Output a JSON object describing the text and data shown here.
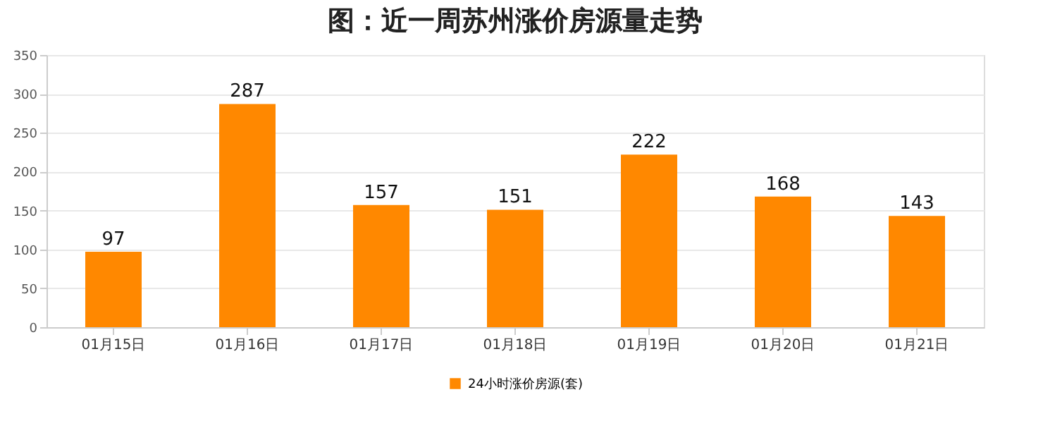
{
  "chart_data": {
    "type": "bar",
    "title": "图：近一周苏州涨价房源量走势",
    "categories": [
      "01月15日",
      "01月16日",
      "01月17日",
      "01月18日",
      "01月19日",
      "01月20日",
      "01月21日"
    ],
    "series": [
      {
        "name": "24小时涨价房源(套)",
        "color": "#ff8800",
        "values": [
          97,
          287,
          157,
          151,
          222,
          168,
          143
        ]
      }
    ],
    "ylim": [
      0,
      350
    ],
    "yticks": [
      0,
      50,
      100,
      150,
      200,
      250,
      300,
      350
    ],
    "grid": "y",
    "legend": "bottom",
    "data_labels": true
  }
}
